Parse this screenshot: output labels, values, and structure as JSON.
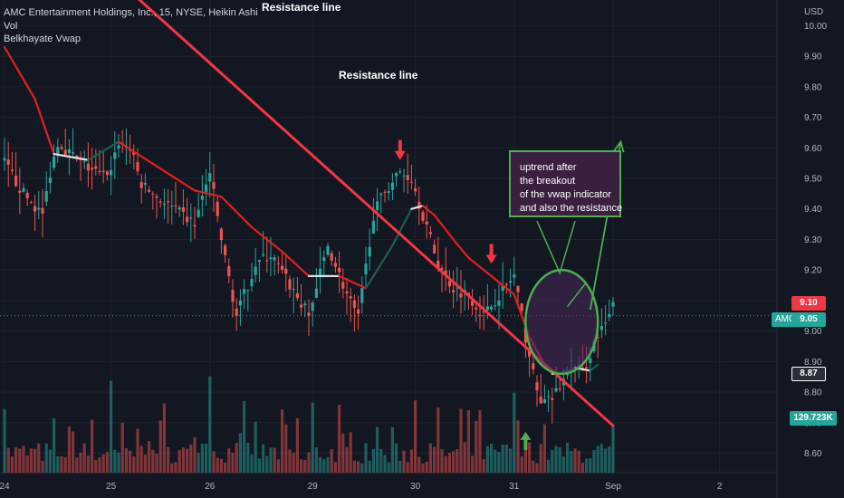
{
  "legend": {
    "symbol_line": "AMC Entertainment Holdings, Inc., 15, NYSE, Heikin Ashi",
    "vol_line": "Vol",
    "indicator_line": "Belkhayate Vwap"
  },
  "price_axis": {
    "currency": "USD",
    "tags": {
      "last_close": "9.10",
      "current": "9.05",
      "symbol": "AMC",
      "vwap": "8.87",
      "volume": "129.723K"
    }
  },
  "annotations": {
    "resistance_label_top": "Resistance line",
    "resistance_label_mid": "Resistance line",
    "note_lines": [
      "uptrend after",
      "the breakout",
      "of the vwap indicator",
      "and also the resistance"
    ]
  },
  "colors": {
    "background": "#131722",
    "up": "#26a69a",
    "down": "#ef5350",
    "resistance": "#f23645",
    "vwap": "#e02020",
    "annotation_green": "#4caf50",
    "grid": "#1e222d"
  },
  "chart_data": {
    "type": "candlestick",
    "style": "Heikin Ashi",
    "interval": "15",
    "x_tick_labels": [
      "24",
      "25",
      "26",
      "29",
      "30",
      "31",
      "Sep",
      "2"
    ],
    "y_tick_labels": [
      "10.00",
      "9.90",
      "9.80",
      "9.70",
      "9.60",
      "9.50",
      "9.40",
      "9.30",
      "9.20",
      "9.10",
      "9.00",
      "8.90",
      "8.80",
      "8.70",
      "8.60"
    ],
    "y_range": [
      8.55,
      10.03
    ],
    "x_range_bars": [
      0,
      160
    ],
    "day_start_bars": {
      "24": 0,
      "25": 28,
      "26": 54,
      "29": 81,
      "30": 108,
      "31": 134,
      "Sep": 160
    },
    "price_path_bars": [
      0,
      5,
      10,
      12,
      14,
      20,
      27,
      30,
      33,
      36,
      42,
      50,
      54,
      57,
      61,
      66,
      70,
      75,
      80,
      85,
      90,
      93,
      97,
      100,
      104,
      107,
      110,
      114,
      118,
      122,
      126,
      130,
      134,
      137,
      140,
      142,
      144,
      146,
      149,
      152,
      155,
      158,
      160
    ],
    "price_path_closes": [
      9.55,
      9.45,
      9.38,
      9.52,
      9.62,
      9.55,
      9.5,
      9.62,
      9.6,
      9.48,
      9.42,
      9.35,
      9.52,
      9.3,
      9.05,
      9.22,
      9.25,
      9.15,
      9.05,
      9.28,
      9.12,
      9.04,
      9.38,
      9.46,
      9.52,
      9.5,
      9.38,
      9.22,
      9.14,
      9.12,
      9.05,
      9.12,
      9.18,
      8.98,
      8.8,
      8.76,
      8.78,
      8.82,
      8.88,
      8.86,
      8.96,
      9.02,
      9.08
    ],
    "vwap": {
      "name": "Belkhayate Vwap",
      "bars": [
        0,
        8,
        13,
        22,
        30,
        40,
        50,
        57,
        65,
        73,
        80,
        88,
        95,
        102,
        107,
        110,
        113,
        118,
        122,
        128,
        134,
        138,
        142,
        144,
        146,
        150,
        154,
        156
      ],
      "values": [
        9.93,
        9.76,
        9.58,
        9.56,
        9.62,
        9.54,
        9.46,
        9.44,
        9.34,
        9.26,
        9.18,
        9.18,
        9.14,
        9.28,
        9.4,
        9.41,
        9.38,
        9.3,
        9.24,
        9.18,
        9.12,
        8.98,
        8.89,
        8.86,
        8.86,
        8.88,
        8.87,
        8.89
      ]
    },
    "resistance_line": {
      "from": {
        "bar": 27,
        "price": 10.18
      },
      "to": {
        "bar": 160,
        "price": 8.69
      }
    },
    "arrow_markers": [
      {
        "bar": 104,
        "price": 9.56,
        "direction": "down"
      },
      {
        "bar": 128,
        "price": 9.22,
        "direction": "down"
      },
      {
        "bar": 137,
        "price": 8.67,
        "direction": "up"
      }
    ],
    "projection": {
      "from": {
        "bar": 154,
        "price": 9.07
      },
      "to": {
        "bar": 162,
        "price": 9.62
      }
    },
    "breakout_ellipse": {
      "center": {
        "bar": 146.5,
        "price": 9.03
      },
      "bar_radius": 9.5,
      "price_radius": 0.17
    },
    "volume_axis_max_k": 400,
    "last_volume_k": 129.723
  }
}
